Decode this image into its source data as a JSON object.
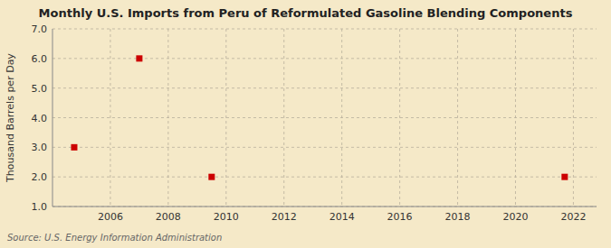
{
  "chart_data": {
    "type": "scatter",
    "title": "Monthly U.S. Imports from Peru of Reformulated Gasoline Blending Components",
    "ylabel": "Thousand Barrels per Day",
    "annotation": "Source: U.S. Energy Information Administration",
    "x": [
      2004.75,
      2007.0,
      2009.5,
      2021.7
    ],
    "values": [
      3.0,
      6.0,
      2.0,
      2.0
    ],
    "color": "#CC0000",
    "marker": "square",
    "xlim": [
      2004.0,
      2022.8
    ],
    "ylim": [
      1.0,
      7.0
    ],
    "xticks": [
      2006,
      2008,
      2010,
      2012,
      2014,
      2016,
      2018,
      2020,
      2022
    ],
    "yticks": [
      {
        "value": 1.0,
        "label": "1.0"
      },
      {
        "value": 2.0,
        "label": "2.0"
      },
      {
        "value": 3.0,
        "label": "3.0"
      },
      {
        "value": 4.0,
        "label": "4.0"
      },
      {
        "value": 5.0,
        "label": "5.0"
      },
      {
        "value": 6.0,
        "label": "6.0"
      },
      {
        "value": 7.0,
        "label": "7.0"
      }
    ],
    "grid": true
  }
}
